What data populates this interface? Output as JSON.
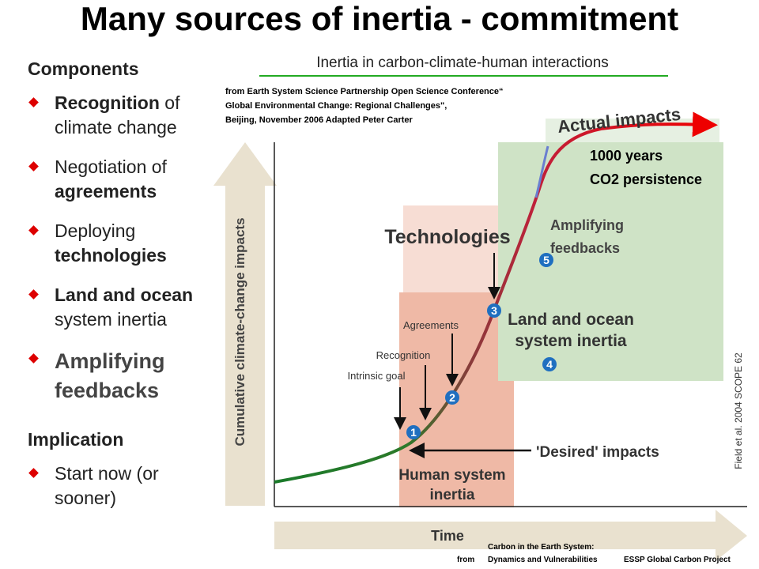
{
  "title": "Many sources of inertia - commitment",
  "components": {
    "heading": "Components",
    "items": [
      {
        "lines": [
          [
            "Recognition",
            " of"
          ],
          [
            "climate change"
          ]
        ]
      },
      {
        "lines": [
          [
            "Negotiation of"
          ],
          [
            "agreements"
          ]
        ]
      },
      {
        "lines": [
          [
            "Deploying"
          ],
          [
            "technologies"
          ]
        ]
      },
      {
        "lines": [
          [
            "Land and ocean"
          ],
          [
            "system inertia"
          ]
        ]
      },
      {
        "lines": [
          [
            "Amplifying"
          ],
          [
            "feedbacks"
          ]
        ]
      }
    ]
  },
  "implication": {
    "heading": "Implication",
    "items": [
      {
        "lines": [
          [
            "Start now (or"
          ],
          [
            "sooner)"
          ]
        ]
      }
    ]
  },
  "diagram": {
    "title": "Inertia in carbon-climate-human interactions",
    "source": [
      "from Earth System Science Partnership Open Science Conference“",
      "Global Environmental Change: Regional Challenges\",",
      "Beijing, November 2006 Adapted Peter Carter"
    ],
    "actual_impacts": "Actual impacts",
    "persistence": [
      "1000 years",
      "CO2 persistence"
    ],
    "amplifying": [
      "Amplifying",
      "feedbacks"
    ],
    "technologies": "Technologies",
    "land_ocean": [
      "Land and ocean",
      "system inertia"
    ],
    "agreements": "Agreements",
    "recognition": "Recognition",
    "intrinsic_goal": "Intrinsic goal",
    "desired": "'Desired' impacts",
    "human": [
      "Human system",
      "inertia"
    ],
    "y_axis": "Cumulative climate-change impacts",
    "x_axis": "Time",
    "citation": "Field et al. 2004 SCOPE 62",
    "markers": [
      "1",
      "2",
      "3",
      "4",
      "5"
    ]
  },
  "footer": {
    "from": "from",
    "book": [
      "Carbon in the Earth System:",
      "Dynamics and Vulnerabilities"
    ],
    "project": "ESSP Global Carbon Project"
  }
}
